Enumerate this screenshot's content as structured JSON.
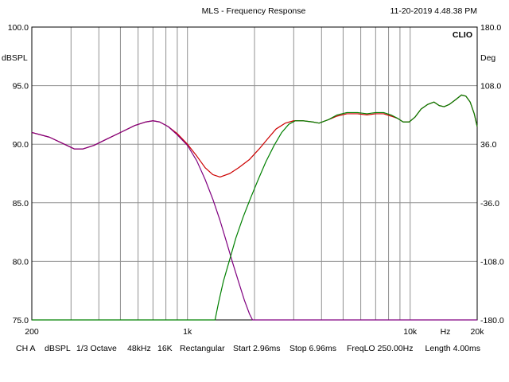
{
  "header": {
    "title": "MLS - Frequency Response",
    "timestamp": "11-20-2019 4.48.38 PM",
    "brand": "CLIO"
  },
  "footer": {
    "channel": "CH A",
    "unit": "dBSPL",
    "smoothing": "1/3 Octave",
    "sample_rate": "48kHz",
    "mls_size": "16K",
    "window": "Rectangular",
    "start": "Start 2.96ms",
    "stop": "Stop 6.96ms",
    "freq_lo": "FreqLO 250.00Hz",
    "length": "Length 4.00ms"
  },
  "chart_data": {
    "type": "line",
    "title": "MLS - Frequency Response",
    "ylabel": "dBSPL",
    "y2label": "Deg",
    "xunit_label": "Hz",
    "xscale": "log",
    "xlim": [
      200,
      20000
    ],
    "ylim": [
      75,
      100
    ],
    "y2lim": [
      -180,
      180
    ],
    "grid": true,
    "x_tick_labels": [
      {
        "value": 200,
        "label": "200"
      },
      {
        "value": 1000,
        "label": "1k"
      },
      {
        "value": 10000,
        "label": "10k"
      },
      {
        "value": 20000,
        "label": "20k"
      }
    ],
    "y_tick_labels": [
      {
        "value": 100,
        "label": "100.0"
      },
      {
        "value": 95,
        "label": "95.0"
      },
      {
        "value": 90,
        "label": "90.0"
      },
      {
        "value": 85,
        "label": "85.0"
      },
      {
        "value": 80,
        "label": "80.0"
      },
      {
        "value": 75,
        "label": "75.0"
      }
    ],
    "y2_tick_labels": [
      {
        "value": 180,
        "label": "180.0"
      },
      {
        "value": 108,
        "label": "108.0"
      },
      {
        "value": 36,
        "label": "36.0"
      },
      {
        "value": -36,
        "label": "-36.0"
      },
      {
        "value": -108,
        "label": "-108.0"
      },
      {
        "value": -180,
        "label": "-180.0"
      }
    ],
    "series": [
      {
        "color": "#cc0000",
        "points": [
          [
            200,
            91.0
          ],
          [
            240,
            90.6
          ],
          [
            280,
            90.0
          ],
          [
            310,
            89.6
          ],
          [
            340,
            89.6
          ],
          [
            380,
            89.9
          ],
          [
            430,
            90.4
          ],
          [
            500,
            91.0
          ],
          [
            580,
            91.6
          ],
          [
            650,
            91.9
          ],
          [
            700,
            92.0
          ],
          [
            750,
            91.9
          ],
          [
            820,
            91.5
          ],
          [
            900,
            90.9
          ],
          [
            1000,
            90.0
          ],
          [
            1100,
            89.0
          ],
          [
            1200,
            88.0
          ],
          [
            1300,
            87.4
          ],
          [
            1400,
            87.2
          ],
          [
            1550,
            87.5
          ],
          [
            1700,
            88.0
          ],
          [
            1900,
            88.7
          ],
          [
            2100,
            89.6
          ],
          [
            2300,
            90.5
          ],
          [
            2500,
            91.3
          ],
          [
            2750,
            91.8
          ],
          [
            3000,
            92.0
          ],
          [
            3300,
            92.0
          ],
          [
            3650,
            91.9
          ],
          [
            3900,
            91.8
          ],
          [
            4300,
            92.1
          ],
          [
            4700,
            92.4
          ],
          [
            5200,
            92.6
          ],
          [
            5800,
            92.6
          ],
          [
            6400,
            92.5
          ],
          [
            7000,
            92.6
          ],
          [
            7600,
            92.6
          ],
          [
            8200,
            92.4
          ],
          [
            8800,
            92.2
          ],
          [
            9300,
            91.9
          ],
          [
            9900,
            91.9
          ],
          [
            10500,
            92.3
          ],
          [
            11200,
            93.0
          ],
          [
            12000,
            93.4
          ],
          [
            12800,
            93.6
          ],
          [
            13500,
            93.3
          ],
          [
            14200,
            93.2
          ],
          [
            15000,
            93.4
          ],
          [
            16000,
            93.8
          ],
          [
            17000,
            94.2
          ],
          [
            17800,
            94.1
          ],
          [
            18600,
            93.6
          ],
          [
            19400,
            92.6
          ],
          [
            20000,
            91.5
          ]
        ]
      },
      {
        "color": "#800080",
        "points": [
          [
            200,
            91.0
          ],
          [
            240,
            90.6
          ],
          [
            280,
            90.0
          ],
          [
            310,
            89.6
          ],
          [
            340,
            89.6
          ],
          [
            380,
            89.9
          ],
          [
            430,
            90.4
          ],
          [
            500,
            91.0
          ],
          [
            580,
            91.6
          ],
          [
            650,
            91.9
          ],
          [
            700,
            92.0
          ],
          [
            750,
            91.9
          ],
          [
            820,
            91.5
          ],
          [
            900,
            90.8
          ],
          [
            1000,
            89.9
          ],
          [
            1100,
            88.6
          ],
          [
            1200,
            87.0
          ],
          [
            1300,
            85.3
          ],
          [
            1400,
            83.5
          ],
          [
            1500,
            81.6
          ],
          [
            1600,
            79.8
          ],
          [
            1700,
            78.2
          ],
          [
            1800,
            76.7
          ],
          [
            1900,
            75.5
          ],
          [
            1960,
            75.0
          ],
          [
            20000,
            75.0
          ]
        ]
      },
      {
        "color": "#008000",
        "points": [
          [
            200,
            75.0
          ],
          [
            1330,
            75.0
          ],
          [
            1380,
            76.5
          ],
          [
            1450,
            78.3
          ],
          [
            1550,
            80.2
          ],
          [
            1650,
            82.0
          ],
          [
            1780,
            83.8
          ],
          [
            1920,
            85.4
          ],
          [
            2080,
            87.0
          ],
          [
            2250,
            88.5
          ],
          [
            2450,
            89.9
          ],
          [
            2650,
            91.0
          ],
          [
            2850,
            91.7
          ],
          [
            3050,
            92.0
          ],
          [
            3300,
            92.0
          ],
          [
            3650,
            91.9
          ],
          [
            3900,
            91.8
          ],
          [
            4300,
            92.1
          ],
          [
            4700,
            92.5
          ],
          [
            5200,
            92.7
          ],
          [
            5800,
            92.7
          ],
          [
            6400,
            92.6
          ],
          [
            7000,
            92.7
          ],
          [
            7600,
            92.7
          ],
          [
            8200,
            92.5
          ],
          [
            8800,
            92.2
          ],
          [
            9300,
            91.9
          ],
          [
            9900,
            91.9
          ],
          [
            10500,
            92.3
          ],
          [
            11200,
            93.0
          ],
          [
            12000,
            93.4
          ],
          [
            12800,
            93.6
          ],
          [
            13500,
            93.3
          ],
          [
            14200,
            93.2
          ],
          [
            15000,
            93.4
          ],
          [
            16000,
            93.8
          ],
          [
            17000,
            94.2
          ],
          [
            17800,
            94.1
          ],
          [
            18600,
            93.6
          ],
          [
            19400,
            92.6
          ],
          [
            20000,
            91.5
          ]
        ]
      }
    ]
  }
}
